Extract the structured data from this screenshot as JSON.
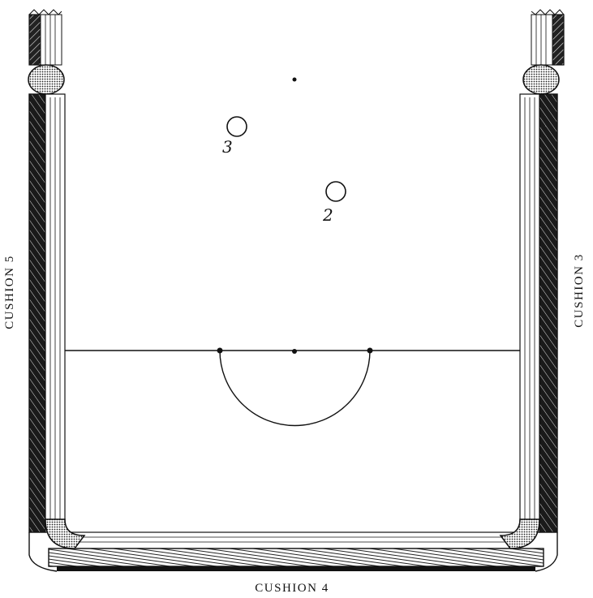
{
  "labels": {
    "left_cushion": "CUSHION 5",
    "right_cushion": "CUSHION 3",
    "bottom_cushion": "CUSHION 4"
  },
  "balls": [
    {
      "number": "3"
    },
    {
      "number": "2"
    }
  ],
  "colors": {
    "ink": "#111111",
    "paper": "#ffffff",
    "cushion_dark": "#1a1a1a"
  }
}
